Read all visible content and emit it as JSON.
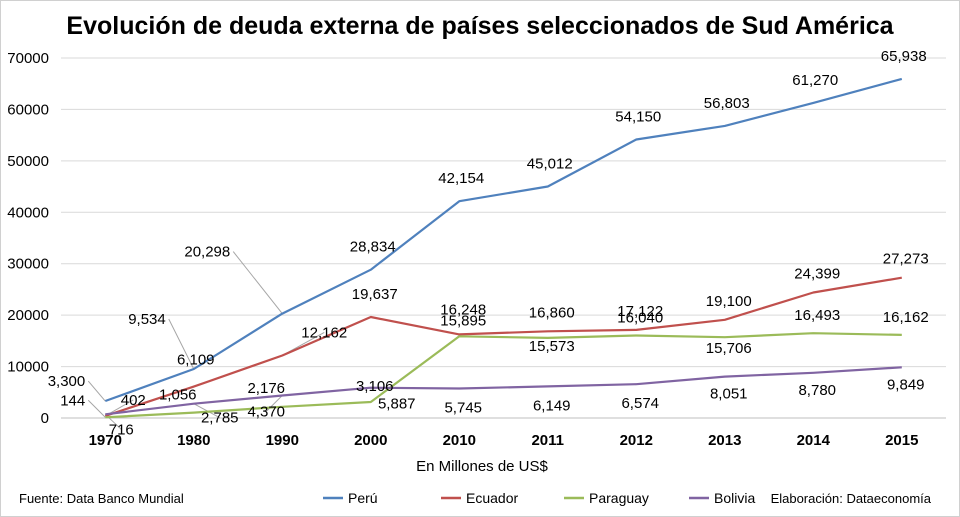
{
  "chart_data": {
    "type": "line",
    "title": "Evolución de deuda externa de países seleccionados de Sud América",
    "xlabel": "En Millones de US$",
    "ylabel": "",
    "categories": [
      "1970",
      "1980",
      "1990",
      "2000",
      "2010",
      "2011",
      "2012",
      "2013",
      "2014",
      "2015"
    ],
    "ylim": [
      0,
      70000
    ],
    "yticks": [
      "0",
      "10000",
      "20000",
      "30000",
      "40000",
      "50000",
      "60000",
      "70000"
    ],
    "grid": true,
    "legend_position": "bottom",
    "series": [
      {
        "name": "Perú",
        "color": "#4f81bd",
        "values": [
          3300,
          9534,
          20298,
          28834,
          42154,
          45012,
          54150,
          56803,
          61270,
          65938
        ],
        "labels": [
          "3,300",
          "9,534",
          "20,298",
          "28,834",
          "42,154",
          "45,012",
          "54,150",
          "56,803",
          "61,270",
          "65,938"
        ]
      },
      {
        "name": "Ecuador",
        "color": "#c0504d",
        "values": [
          402,
          6109,
          12162,
          19637,
          16248,
          16860,
          17122,
          19100,
          24399,
          27273
        ],
        "labels": [
          "402",
          "6,109",
          "12,162",
          "19,637",
          "16,248",
          "16,860",
          "17,122",
          "19,100",
          "24,399",
          "27,273"
        ]
      },
      {
        "name": "Paraguay",
        "color": "#9bbb59",
        "values": [
          144,
          1056,
          2176,
          3106,
          15895,
          15573,
          16040,
          15706,
          16493,
          16162
        ],
        "labels": [
          "144",
          "1,056",
          "2,176",
          "3,106",
          "15,895",
          "15,573",
          "16,040",
          "15,706",
          "16,493",
          "16,162"
        ]
      },
      {
        "name": "Bolivia",
        "color": "#8064a2",
        "values": [
          716,
          2785,
          4370,
          5887,
          5745,
          6149,
          6574,
          8051,
          8780,
          9849
        ],
        "labels": [
          "716",
          "2,785",
          "4,370",
          "5,887",
          "5,745",
          "6,149",
          "6,574",
          "8,051",
          "8,780",
          "9,849"
        ]
      }
    ]
  },
  "footer": {
    "source": "Fuente: Data Banco Mundial",
    "credit": "Elaboración: Dataeconomía"
  }
}
